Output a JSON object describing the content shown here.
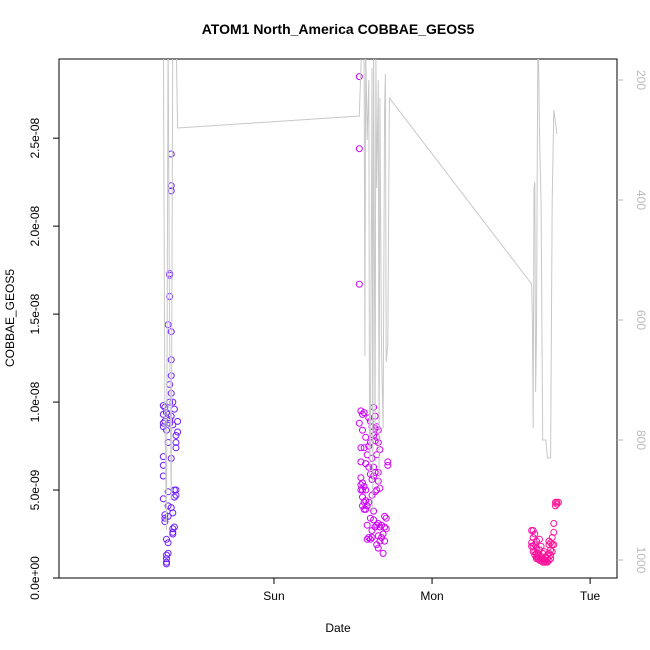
{
  "chart_data": {
    "type": "scatter",
    "title": "ATOM1 North_America COBBAE_GEOS5",
    "xlabel": "Date",
    "ylabel": "COBBAE_GEOS5",
    "x_unit": "days since Saturday 00:00",
    "xlim": [
      -0.36,
      3.17
    ],
    "ylim": [
      0,
      2.95e-08
    ],
    "x_ticks": [
      {
        "value": 1,
        "label": "Sun"
      },
      {
        "value": 2,
        "label": "Mon"
      },
      {
        "value": 3,
        "label": "Tue"
      }
    ],
    "y_ticks": [
      {
        "value": 0,
        "label": "0.0e+00"
      },
      {
        "value": 5e-09,
        "label": "5.0e-09"
      },
      {
        "value": 1e-08,
        "label": "1.0e-08"
      },
      {
        "value": 1.5e-08,
        "label": "1.5e-08"
      },
      {
        "value": 2e-08,
        "label": "2.0e-08"
      },
      {
        "value": 2.5e-08,
        "label": "2.5e-08"
      }
    ],
    "y2_label": "",
    "y2lim_reversed": [
      1030,
      165
    ],
    "y2_ticks": [
      {
        "value": 200,
        "label": "200"
      },
      {
        "value": 400,
        "label": "400"
      },
      {
        "value": 600,
        "label": "600"
      },
      {
        "value": 800,
        "label": "800"
      },
      {
        "value": 1000,
        "label": "1000"
      }
    ],
    "colors": {
      "points_start": "#6b1fff",
      "points_mid": "#cc00ff",
      "points_end": "#ff1493",
      "pressure_line": "#c8c8c8",
      "right_axis": "#bbbbbb"
    },
    "series": [
      {
        "kind": "points",
        "points": [
          [
            0.3,
            9.8e-09
          ],
          [
            0.3,
            9.3e-09
          ],
          [
            0.3,
            8.8e-09
          ],
          [
            0.3,
            8.6e-09
          ],
          [
            0.3,
            6.9e-09
          ],
          [
            0.3,
            6.4e-09
          ],
          [
            0.3,
            5.8e-09
          ],
          [
            0.3,
            4.5e-09
          ],
          [
            0.31,
            9.7e-09
          ],
          [
            0.31,
            8.9e-09
          ],
          [
            0.31,
            3.6e-09
          ],
          [
            0.31,
            3.4e-09
          ],
          [
            0.31,
            3.2e-09
          ],
          [
            0.32,
            9.4e-09
          ],
          [
            0.32,
            8.4e-09
          ],
          [
            0.32,
            2.2e-09
          ],
          [
            0.32,
            1.3e-09
          ],
          [
            0.32,
            1.1e-09
          ],
          [
            0.32,
            9e-10
          ],
          [
            0.32,
            8e-10
          ],
          [
            0.33,
            1.44e-08
          ],
          [
            0.33,
            9.3e-09
          ],
          [
            0.33,
            7.7e-09
          ],
          [
            0.33,
            4.9e-09
          ],
          [
            0.33,
            4.1e-09
          ],
          [
            0.33,
            3.5e-09
          ],
          [
            0.33,
            2e-09
          ],
          [
            0.33,
            1.4e-09
          ],
          [
            0.34,
            1.73e-08
          ],
          [
            0.34,
            1.72e-08
          ],
          [
            0.34,
            1.6e-08
          ],
          [
            0.34,
            1.1e-08
          ],
          [
            0.34,
            1e-08
          ],
          [
            0.34,
            9e-09
          ],
          [
            0.34,
            8.8e-09
          ],
          [
            0.35,
            2.41e-08
          ],
          [
            0.35,
            2.23e-08
          ],
          [
            0.35,
            2.2e-08
          ],
          [
            0.35,
            1.4e-08
          ],
          [
            0.35,
            1.24e-08
          ],
          [
            0.35,
            1.15e-08
          ],
          [
            0.35,
            1.05e-08
          ],
          [
            0.35,
            9.2e-09
          ],
          [
            0.35,
            6.8e-09
          ],
          [
            0.35,
            4e-09
          ],
          [
            0.36,
            1e-08
          ],
          [
            0.36,
            8.7e-09
          ],
          [
            0.36,
            3.7e-09
          ],
          [
            0.36,
            2.8e-09
          ],
          [
            0.36,
            2.6e-09
          ],
          [
            0.36,
            2.5e-09
          ],
          [
            0.37,
            9.6e-09
          ],
          [
            0.37,
            5e-09
          ],
          [
            0.37,
            4.6e-09
          ],
          [
            0.37,
            2.9e-09
          ],
          [
            0.38,
            8.1e-09
          ],
          [
            0.38,
            7.7e-09
          ],
          [
            0.38,
            7.4e-09
          ],
          [
            0.38,
            5e-09
          ],
          [
            0.38,
            4.7e-09
          ],
          [
            0.39,
            8.9e-09
          ],
          [
            0.39,
            8.3e-09
          ],
          [
            1.54,
            2.85e-08
          ],
          [
            1.54,
            2.44e-08
          ],
          [
            1.54,
            1.67e-08
          ],
          [
            1.54,
            8.8e-09
          ],
          [
            1.55,
            9.5e-09
          ],
          [
            1.55,
            7.4e-09
          ],
          [
            1.55,
            6.6e-09
          ],
          [
            1.55,
            5.7e-09
          ],
          [
            1.55,
            5.3e-09
          ],
          [
            1.55,
            5e-09
          ],
          [
            1.56,
            9.3e-09
          ],
          [
            1.56,
            8.4e-09
          ],
          [
            1.56,
            5.4e-09
          ],
          [
            1.56,
            5e-09
          ],
          [
            1.56,
            4.6e-09
          ],
          [
            1.56,
            4.1e-09
          ],
          [
            1.57,
            9.4e-09
          ],
          [
            1.57,
            7.4e-09
          ],
          [
            1.57,
            5.2e-09
          ],
          [
            1.57,
            4.3e-09
          ],
          [
            1.57,
            3.9e-09
          ],
          [
            1.58,
            8e-09
          ],
          [
            1.58,
            6.5e-09
          ],
          [
            1.58,
            5e-09
          ],
          [
            1.58,
            4.4e-09
          ],
          [
            1.58,
            3.9e-09
          ],
          [
            1.59,
            7e-09
          ],
          [
            1.59,
            4.1e-09
          ],
          [
            1.59,
            3e-09
          ],
          [
            1.59,
            2.2e-09
          ],
          [
            1.6,
            9.1e-09
          ],
          [
            1.6,
            7.5e-09
          ],
          [
            1.6,
            6.3e-09
          ],
          [
            1.6,
            4.3e-09
          ],
          [
            1.6,
            2.3e-09
          ],
          [
            1.61,
            8.9e-09
          ],
          [
            1.61,
            7.7e-09
          ],
          [
            1.61,
            5.9e-09
          ],
          [
            1.61,
            3.4e-09
          ],
          [
            1.61,
            2.2e-09
          ],
          [
            1.62,
            8.6e-09
          ],
          [
            1.62,
            6.8e-09
          ],
          [
            1.62,
            5.6e-09
          ],
          [
            1.62,
            4.7e-09
          ],
          [
            1.62,
            2.7e-09
          ],
          [
            1.62,
            2.3e-09
          ],
          [
            1.63,
            9.7e-09
          ],
          [
            1.63,
            8.1e-09
          ],
          [
            1.63,
            6.3e-09
          ],
          [
            1.63,
            5.8e-09
          ],
          [
            1.63,
            3.8e-09
          ],
          [
            1.63,
            3.3e-09
          ],
          [
            1.64,
            9.2e-09
          ],
          [
            1.64,
            8.5e-09
          ],
          [
            1.64,
            7.8e-09
          ],
          [
            1.64,
            6e-09
          ],
          [
            1.64,
            4.9e-09
          ],
          [
            1.64,
            2.9e-09
          ],
          [
            1.65,
            8.6e-09
          ],
          [
            1.65,
            8e-09
          ],
          [
            1.65,
            7e-09
          ],
          [
            1.65,
            5e-09
          ],
          [
            1.65,
            3e-09
          ],
          [
            1.65,
            1.9e-09
          ],
          [
            1.66,
            8.4e-09
          ],
          [
            1.66,
            7.7e-09
          ],
          [
            1.66,
            6e-09
          ],
          [
            1.66,
            5.5e-09
          ],
          [
            1.66,
            3.1e-09
          ],
          [
            1.66,
            2.4e-09
          ],
          [
            1.66,
            1.7e-09
          ],
          [
            1.67,
            7.3e-09
          ],
          [
            1.67,
            5.1e-09
          ],
          [
            1.67,
            2.9e-09
          ],
          [
            1.67,
            2.1e-09
          ],
          [
            1.68,
            3e-09
          ],
          [
            1.68,
            2.3e-09
          ],
          [
            1.69,
            2.5e-09
          ],
          [
            1.69,
            1.4e-09
          ],
          [
            1.7,
            3.5e-09
          ],
          [
            1.7,
            2.9e-09
          ],
          [
            1.7,
            2.1e-09
          ],
          [
            1.71,
            3.4e-09
          ],
          [
            1.71,
            2.8e-09
          ],
          [
            1.72,
            6.6e-09
          ],
          [
            1.72,
            6.4e-09
          ],
          [
            2.63,
            2.7e-09
          ],
          [
            2.63,
            2e-09
          ],
          [
            2.63,
            1.8e-09
          ],
          [
            2.64,
            2.7e-09
          ],
          [
            2.64,
            2.3e-09
          ],
          [
            2.64,
            1.8e-09
          ],
          [
            2.64,
            1.5e-09
          ],
          [
            2.65,
            2.5e-09
          ],
          [
            2.65,
            1.9e-09
          ],
          [
            2.65,
            1.5e-09
          ],
          [
            2.65,
            1.3e-09
          ],
          [
            2.66,
            2.1e-09
          ],
          [
            2.66,
            1.7e-09
          ],
          [
            2.66,
            1.4e-09
          ],
          [
            2.66,
            1.2e-09
          ],
          [
            2.66,
            1.1e-09
          ],
          [
            2.67,
            1.4e-09
          ],
          [
            2.67,
            1.2e-09
          ],
          [
            2.67,
            1.1e-09
          ],
          [
            2.68,
            2.2e-09
          ],
          [
            2.68,
            1.6e-09
          ],
          [
            2.68,
            1.2e-09
          ],
          [
            2.68,
            1e-09
          ],
          [
            2.69,
            1.8e-09
          ],
          [
            2.69,
            1.1e-09
          ],
          [
            2.69,
            1e-09
          ],
          [
            2.7,
            1.4e-09
          ],
          [
            2.7,
            1.1e-09
          ],
          [
            2.7,
            9e-10
          ],
          [
            2.71,
            1.5e-09
          ],
          [
            2.71,
            1e-09
          ],
          [
            2.71,
            9e-10
          ],
          [
            2.72,
            1.2e-09
          ],
          [
            2.72,
            1e-09
          ],
          [
            2.72,
            9e-10
          ],
          [
            2.73,
            1.3e-09
          ],
          [
            2.73,
            1.1e-09
          ],
          [
            2.73,
            9e-10
          ],
          [
            2.74,
            2.1e-09
          ],
          [
            2.74,
            1.9e-09
          ],
          [
            2.74,
            1.4e-09
          ],
          [
            2.74,
            1e-09
          ],
          [
            2.75,
            2e-09
          ],
          [
            2.75,
            1.6e-09
          ],
          [
            2.75,
            1.3e-09
          ],
          [
            2.75,
            1.1e-09
          ],
          [
            2.76,
            2.3e-09
          ],
          [
            2.76,
            1.9e-09
          ],
          [
            2.76,
            1.5e-09
          ],
          [
            2.77,
            3.1e-09
          ],
          [
            2.77,
            2.6e-09
          ],
          [
            2.77,
            1.9e-09
          ],
          [
            2.78,
            4.3e-09
          ],
          [
            2.78,
            4.1e-09
          ],
          [
            2.79,
            4.3e-09
          ],
          [
            2.79,
            4.2e-09
          ],
          [
            2.8,
            4.3e-09
          ]
        ]
      },
      {
        "kind": "line",
        "axis": "right",
        "points": [
          [
            0.3,
            100
          ],
          [
            0.31,
            760
          ],
          [
            0.32,
            950
          ],
          [
            0.33,
            120
          ],
          [
            0.34,
            650
          ],
          [
            0.35,
            900
          ],
          [
            0.36,
            120
          ],
          [
            0.38,
            120
          ],
          [
            0.39,
            280
          ],
          [
            1.54,
            260
          ],
          [
            1.56,
            100
          ],
          [
            1.57,
            150
          ],
          [
            1.575,
            660
          ],
          [
            1.58,
            150
          ],
          [
            1.59,
            300
          ],
          [
            1.6,
            200
          ],
          [
            1.605,
            860
          ],
          [
            1.61,
            790
          ],
          [
            1.62,
            180
          ],
          [
            1.625,
            920
          ],
          [
            1.63,
            150
          ],
          [
            1.64,
            790
          ],
          [
            1.645,
            160
          ],
          [
            1.65,
            380
          ],
          [
            1.66,
            200
          ],
          [
            1.665,
            880
          ],
          [
            1.67,
            230
          ],
          [
            1.68,
            650
          ],
          [
            1.69,
            780
          ],
          [
            1.7,
            250
          ],
          [
            1.705,
            190
          ],
          [
            1.71,
            670
          ],
          [
            1.72,
            640
          ],
          [
            1.73,
            230
          ],
          [
            2.63,
            540
          ],
          [
            2.635,
            600
          ],
          [
            2.64,
            780
          ],
          [
            2.645,
            380
          ],
          [
            2.65,
            370
          ],
          [
            2.655,
            720
          ],
          [
            2.66,
            640
          ],
          [
            2.67,
            90
          ],
          [
            2.68,
            290
          ],
          [
            2.69,
            410
          ],
          [
            2.7,
            800
          ],
          [
            2.72,
            800
          ],
          [
            2.73,
            830
          ],
          [
            2.75,
            830
          ],
          [
            2.76,
            400
          ],
          [
            2.77,
            250
          ],
          [
            2.78,
            270
          ],
          [
            2.79,
            290
          ]
        ]
      }
    ]
  }
}
